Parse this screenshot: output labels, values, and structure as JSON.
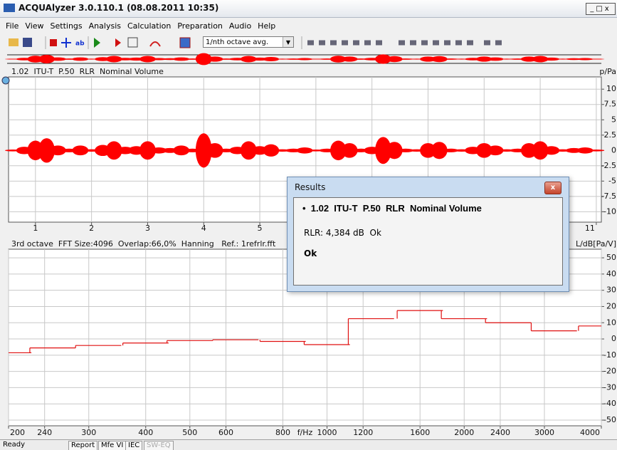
{
  "window": {
    "title": "ACQUAlyzer 3.0.110.1 (08.08.2011 10:35)"
  },
  "menu": [
    "File",
    "View",
    "Settings",
    "Analysis",
    "Calculation",
    "Preparation",
    "Audio",
    "Help"
  ],
  "toolbar": {
    "text_button": "ab",
    "dropdown": "1/nth octave avg."
  },
  "chart_data": [
    {
      "type": "area",
      "title": "1.02  ITU-T  P.50  RLR  Nominal Volume",
      "y_label": "p/Pa",
      "color": "#ff0000",
      "x": [
        0.6,
        0.8,
        1.0,
        1.2,
        1.4,
        1.6,
        1.8,
        2.0,
        2.2,
        2.4,
        2.6,
        2.8,
        3.0,
        3.2,
        3.4,
        3.6,
        3.8,
        4.0,
        4.2,
        4.4,
        4.6,
        4.8,
        5.0,
        5.2,
        5.4,
        5.6,
        5.8,
        6.0,
        6.2,
        6.4,
        6.6,
        6.8,
        7.0,
        7.2,
        7.4,
        7.6,
        7.8,
        8.0,
        8.2,
        8.4,
        8.6,
        8.8,
        9.0,
        9.2,
        9.4,
        9.6,
        9.8,
        10.0,
        10.2,
        10.4,
        10.6,
        10.8,
        11.0
      ],
      "values": [
        0.15,
        0.6,
        1.6,
        2.0,
        0.8,
        0.3,
        0.8,
        0.2,
        0.9,
        1.5,
        0.6,
        0.7,
        1.5,
        0.5,
        0.4,
        0.8,
        0.3,
        2.8,
        1.2,
        0.3,
        0.6,
        1.5,
        0.7,
        1.0,
        0.2,
        0.3,
        0.5,
        0.15,
        0.3,
        1.6,
        1.2,
        0.3,
        0.6,
        2.2,
        1.4,
        0.3,
        0.2,
        1.2,
        1.4,
        0.3,
        0.2,
        0.6,
        1.2,
        0.8,
        0.2,
        0.3,
        1.2,
        1.5,
        0.7,
        0.2,
        0.4,
        0.5,
        0.15
      ],
      "xlim": [
        0.52,
        11.09
      ],
      "ylim": [
        -11.7,
        12
      ],
      "xticks": [
        1,
        2,
        3,
        4,
        5,
        6,
        7,
        8,
        9,
        10,
        11
      ],
      "yticks": [
        10,
        7.5,
        5,
        2.5,
        0,
        -2.5,
        -5,
        -7.5,
        -10
      ],
      "grid": true
    },
    {
      "type": "line",
      "step": true,
      "title": "3rd octave  FFT Size:4096  Overlap:66,0%  Hanning   Ref.: 1refrlr.fft",
      "y_label": "L/dB[Pa/V]",
      "x_label": "f/Hz",
      "color": "#e01010",
      "x": [
        200,
        250,
        315,
        400,
        500,
        630,
        800,
        1000,
        1250,
        1600,
        2000,
        2500,
        3150,
        4000
      ],
      "values": [
        -8.5,
        -5.5,
        -4,
        -2.5,
        -1,
        -0.5,
        -1.5,
        -3.5,
        12.5,
        17.5,
        12.5,
        10,
        5,
        8
      ],
      "xscale": "log",
      "xlim": [
        200,
        4000
      ],
      "ylim": [
        -53.5,
        55.3
      ],
      "xticks": [
        200,
        240,
        300,
        400,
        500,
        600,
        800,
        1000,
        1200,
        1600,
        2000,
        2400,
        3000,
        4000
      ],
      "yticks": [
        50,
        40,
        30,
        20,
        10,
        0,
        -10,
        -20,
        -30,
        -40,
        -50
      ],
      "grid": true
    }
  ],
  "dialog": {
    "title": "Results",
    "heading": "1.02  ITU-T  P.50  RLR  Nominal Volume",
    "result": "RLR: 4,384 dB  Ok",
    "verdict": "Ok"
  },
  "status_bar": {
    "state": "Ready",
    "tabs": [
      "Report",
      "Mfe VI",
      "IEC",
      "SW-EQ"
    ]
  }
}
